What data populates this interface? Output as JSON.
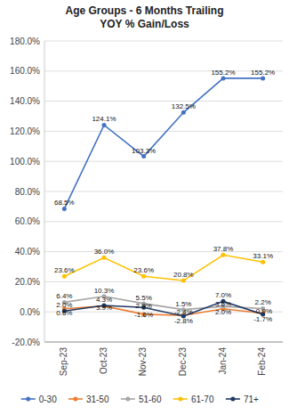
{
  "chart_data": {
    "type": "line",
    "title": "Age Groups - 6 Months Trailing\nYOY % Gain/Loss",
    "categories": [
      "Sep-23",
      "Oct-23",
      "Nov-23",
      "Dec-23",
      "Jan-24",
      "Feb-24"
    ],
    "series": [
      {
        "name": "0-30",
        "color": "#4472C4",
        "values": [
          68.5,
          124.1,
          103.3,
          132.5,
          155.2,
          155.2
        ],
        "value_labels": [
          "68.5%",
          "124.1%",
          "103.3%",
          "132.5%",
          "155.2%",
          "155.2%"
        ]
      },
      {
        "name": "31-50",
        "color": "#ED7D31",
        "values": [
          2.0,
          3.9,
          -1.6,
          -2.4,
          2.0,
          -0.9
        ],
        "value_labels": [
          "2.0%",
          "3.9%",
          "-1.6%",
          "-2.4%",
          "2.0%",
          "-0.9%"
        ]
      },
      {
        "name": "51-60",
        "color": "#A5A5A5",
        "values": [
          6.4,
          10.3,
          5.5,
          1.5,
          3.6,
          2.2
        ],
        "value_labels": [
          "6.4%",
          "10.3%",
          "5.5%",
          "1.5%",
          "3.6%",
          "2.2%"
        ]
      },
      {
        "name": "61-70",
        "color": "#FFC000",
        "values": [
          23.6,
          36.0,
          23.6,
          20.8,
          37.8,
          33.1
        ],
        "value_labels": [
          "23.6%",
          "36.0%",
          "23.6%",
          "20.8%",
          "37.8%",
          "33.1%"
        ]
      },
      {
        "name": "71+",
        "color": "#1F3864",
        "values": [
          0.6,
          4.3,
          2.9,
          -2.8,
          7.0,
          -1.7
        ],
        "value_labels": [
          "0.6%",
          "4.3%",
          "2.9%",
          "-2.8%",
          "7.0%",
          "-1.7%"
        ]
      }
    ],
    "ylim": [
      -20.0,
      180.0
    ],
    "yticks": [
      {
        "value": -20.0,
        "label": "-20.0%"
      },
      {
        "value": 0.0,
        "label": "0.0%"
      },
      {
        "value": 20.0,
        "label": "20.0%"
      },
      {
        "value": 40.0,
        "label": "40.0%"
      },
      {
        "value": 60.0,
        "label": "60.0%"
      },
      {
        "value": 80.0,
        "label": "80.0%"
      },
      {
        "value": 100.0,
        "label": "100.0%"
      },
      {
        "value": 120.0,
        "label": "120.0%"
      },
      {
        "value": 140.0,
        "label": "140.0%"
      },
      {
        "value": 160.0,
        "label": "160.0%"
      },
      {
        "value": 180.0,
        "label": "180.0%"
      }
    ],
    "grid": true,
    "legend": "bottom",
    "data_labels": true,
    "marker": "circle",
    "line_style": "solid"
  }
}
